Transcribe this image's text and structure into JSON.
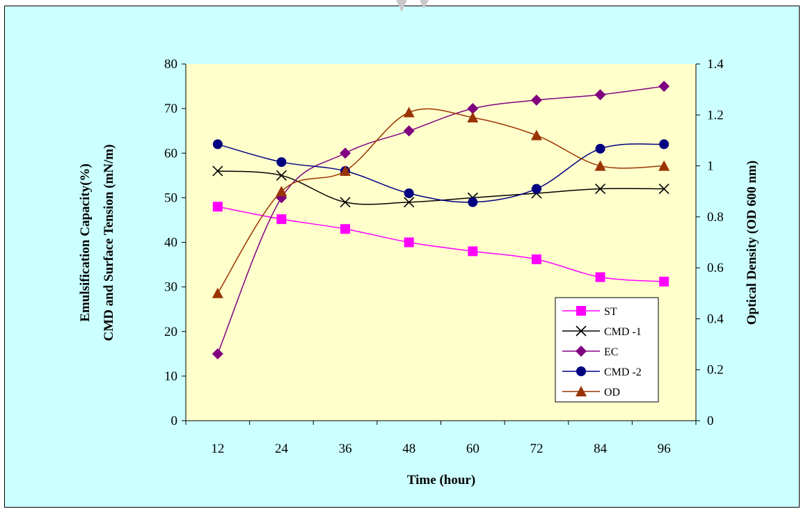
{
  "chart_data": {
    "type": "line",
    "xlabel": "Time (hour)",
    "ylabel_left_line1": "Emulsification Capacity(%)",
    "ylabel_left_line2": "CMD and Surface Tension (mN/m)",
    "ylabel_right": "Optical Density (OD 600 nm)",
    "categories": [
      12,
      24,
      36,
      48,
      60,
      72,
      84,
      96
    ],
    "x_tick_labels": [
      "12",
      "24",
      "36",
      "48",
      "60",
      "72",
      "84",
      "96"
    ],
    "ylim_left": [
      0,
      80
    ],
    "ylim_right": [
      0,
      1.4
    ],
    "y_left_ticks": [
      "0",
      "10",
      "20",
      "30",
      "40",
      "50",
      "60",
      "70",
      "80"
    ],
    "y_right_ticks": [
      "0",
      "0.2",
      "0.4",
      "0.6",
      "0.8",
      "1",
      "1.2",
      "1.4"
    ],
    "grid": false,
    "legend_position": "bottom-right",
    "series": [
      {
        "name": "ST",
        "axis": "left",
        "color": "#ff00ff",
        "marker": "square",
        "values": [
          48,
          45.2,
          43,
          40,
          38,
          36.2,
          32.2,
          31.2
        ]
      },
      {
        "name": "CMD -1",
        "axis": "left",
        "color": "#000000",
        "marker": "x",
        "values": [
          56,
          55,
          49,
          49,
          50,
          51,
          52,
          52
        ]
      },
      {
        "name": "EC",
        "axis": "left",
        "color": "#800080",
        "marker": "diamond",
        "values": [
          15,
          50,
          60,
          65,
          70,
          71.9,
          73.1,
          75
        ]
      },
      {
        "name": "CMD -2",
        "axis": "left",
        "color": "#000080",
        "marker": "circle",
        "values": [
          62,
          58,
          56,
          51,
          49,
          52,
          61,
          62
        ]
      },
      {
        "name": "OD",
        "axis": "right",
        "color": "#993300",
        "marker": "triangle",
        "values": [
          0.5,
          0.9,
          0.98,
          1.21,
          1.19,
          1.12,
          1.0,
          1.0
        ]
      }
    ]
  }
}
